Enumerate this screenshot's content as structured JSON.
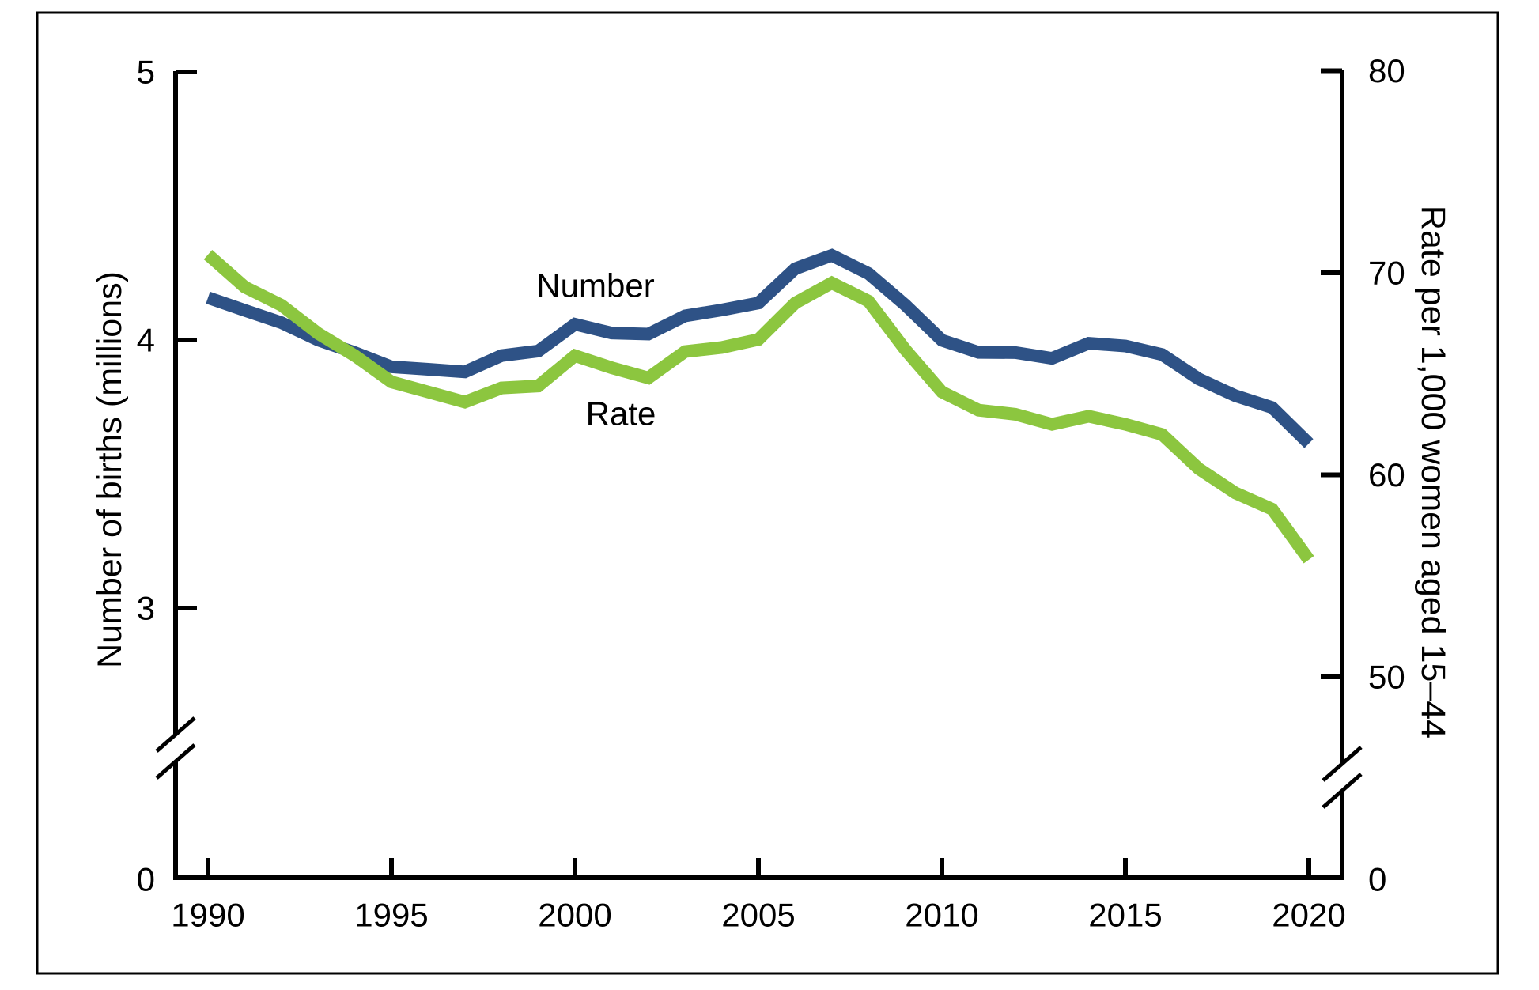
{
  "figure": {
    "background": "#FFFFFF",
    "border_color": "#000000"
  },
  "colors": {
    "number_line": "#2E5286",
    "rate_line": "#8CC63F",
    "axis": "#000000"
  },
  "labels": {
    "left_axis_title": "Number of births (millions)",
    "right_axis_title": "Rate per 1,000 women aged 15–44",
    "number_annotation": "Number",
    "rate_annotation": "Rate",
    "left_zero": "0",
    "right_zero": "0"
  },
  "chart_data": {
    "type": "line",
    "title": "",
    "x": [
      1990,
      1991,
      1992,
      1993,
      1994,
      1995,
      1996,
      1997,
      1998,
      1999,
      2000,
      2001,
      2002,
      2003,
      2004,
      2005,
      2006,
      2007,
      2008,
      2009,
      2010,
      2011,
      2012,
      2013,
      2014,
      2015,
      2016,
      2017,
      2018,
      2019,
      2020
    ],
    "series": [
      {
        "name": "Number",
        "axis": "left",
        "unit": "millions of births",
        "color": "#2E5286",
        "values": [
          4.158,
          4.111,
          4.065,
          4.0,
          3.953,
          3.9,
          3.891,
          3.881,
          3.942,
          3.959,
          4.059,
          4.026,
          4.022,
          4.09,
          4.112,
          4.138,
          4.266,
          4.316,
          4.248,
          4.131,
          3.999,
          3.954,
          3.953,
          3.932,
          3.988,
          3.978,
          3.946,
          3.855,
          3.792,
          3.748,
          3.614
        ]
      },
      {
        "name": "Rate",
        "axis": "right",
        "unit": "births per 1,000 women aged 15–44",
        "color": "#8CC63F",
        "values": [
          70.9,
          69.3,
          68.4,
          67.0,
          65.9,
          64.6,
          64.1,
          63.6,
          64.3,
          64.4,
          65.9,
          65.3,
          64.8,
          66.1,
          66.3,
          66.7,
          68.5,
          69.5,
          68.6,
          66.2,
          64.1,
          63.2,
          63.0,
          62.5,
          62.9,
          62.5,
          62.0,
          60.3,
          59.1,
          58.3,
          55.8
        ]
      }
    ],
    "left_axis": {
      "label": "Number of births (millions)",
      "tick_values": [
        5,
        4,
        3
      ],
      "zero_label": "0",
      "visible_range": [
        3,
        5
      ],
      "axis_break": true
    },
    "right_axis": {
      "label": "Rate per 1,000 women aged 15–44",
      "tick_values": [
        80,
        70,
        60,
        50
      ],
      "zero_label": "0",
      "visible_range": [
        50,
        80
      ],
      "axis_break": true
    },
    "x_axis": {
      "tick_values": [
        1990,
        1995,
        2000,
        2005,
        2010,
        2015,
        2020
      ],
      "range": [
        1990,
        2020
      ]
    },
    "annotations": [
      {
        "text": "Number",
        "series": "Number",
        "position": "above-line"
      },
      {
        "text": "Rate",
        "series": "Rate",
        "position": "below-line"
      }
    ],
    "legend_position": "inline-labels",
    "grid": false
  }
}
